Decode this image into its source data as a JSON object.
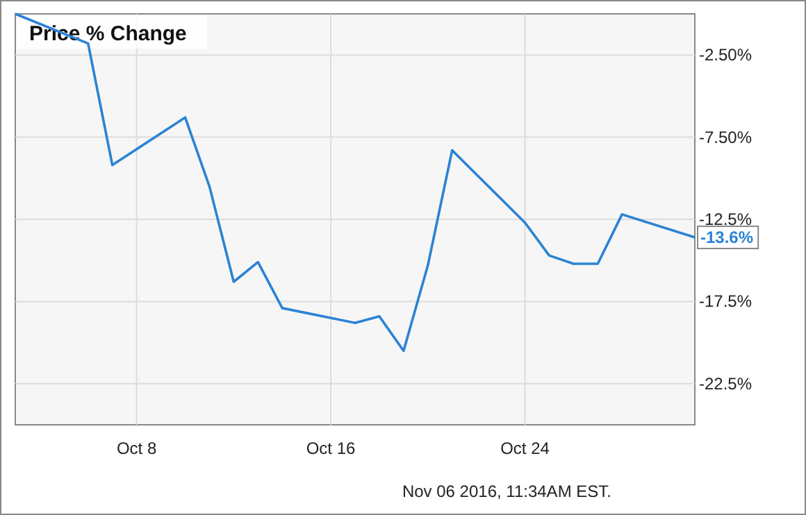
{
  "chart_data": {
    "type": "line",
    "title": "Price % Change",
    "x": [
      "2016-10-03",
      "2016-10-06",
      "2016-10-07",
      "2016-10-10",
      "2016-10-11",
      "2016-10-12",
      "2016-10-13",
      "2016-10-14",
      "2016-10-17",
      "2016-10-18",
      "2016-10-19",
      "2016-10-20",
      "2016-10-21",
      "2016-10-24",
      "2016-10-25",
      "2016-10-26",
      "2016-10-27",
      "2016-10-28",
      "2016-10-31"
    ],
    "series": [
      {
        "color": "#2b83d4",
        "values": [
          0,
          -1.8,
          -9.2,
          -6.3,
          -10.5,
          -16.3,
          -15.1,
          -17.9,
          -18.8,
          -18.4,
          -20.5,
          -15.3,
          -8.3,
          -12.7,
          -14.7,
          -15.2,
          -15.2,
          -12.2,
          -13.6
        ],
        "value_labels": [
          null,
          null,
          null,
          null,
          null,
          null,
          null,
          null,
          null,
          null,
          null,
          null,
          null,
          null,
          null,
          null,
          null,
          null,
          "-13.6%"
        ]
      }
    ],
    "xlim": [
      "2016-10-03",
      "2016-10-31"
    ],
    "xticks": [
      {
        "value": "2016-10-08",
        "label": "Oct 8"
      },
      {
        "value": "2016-10-16",
        "label": "Oct 16"
      },
      {
        "value": "2016-10-24",
        "label": "Oct 24"
      }
    ],
    "ylim": [
      -25,
      0
    ],
    "yticks": [
      {
        "value": -2.5,
        "label": "-2.50%"
      },
      {
        "value": -7.5,
        "label": "-7.50%"
      },
      {
        "value": -12.5,
        "label": "-12.5%"
      },
      {
        "value": -17.5,
        "label": "-17.5%"
      },
      {
        "value": -22.5,
        "label": "-22.5%"
      }
    ],
    "grid": true,
    "marker": "none",
    "line_style": "solid",
    "annotations": [
      "Nov 06 2016, 11:34AM EST."
    ]
  }
}
